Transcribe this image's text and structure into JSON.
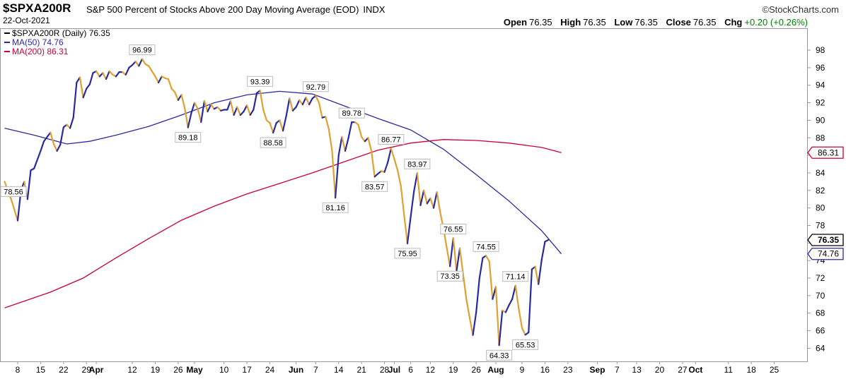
{
  "header": {
    "symbol": "$SPXA200R",
    "title": "S&P 500 Percent of Stocks Above 200 Day Moving Average (EOD)",
    "exchange": "INDX",
    "date": "22-Oct-2021",
    "logo": "©StockCharts.com",
    "ohlc": {
      "open_label": "Open",
      "open": "76.35",
      "high_label": "High",
      "high": "76.35",
      "low_label": "Low",
      "low": "76.35",
      "close_label": "Close",
      "close": "76.35",
      "chg_label": "Chg",
      "chg": "+0.20 (+0.26%)",
      "chg_color": "#008000"
    }
  },
  "legend": [
    {
      "label": "$SPXA200R (Daily) 76.35",
      "color": "#000000"
    },
    {
      "label": "MA(50) 74.76",
      "color": "#2a2aa0"
    },
    {
      "label": "MA(200) 86.31",
      "color": "#cc0033"
    }
  ],
  "chart_data": {
    "type": "line",
    "ylim": [
      62.5,
      100.5
    ],
    "y_ticks": [
      64,
      66,
      68,
      70,
      72,
      74,
      76,
      78,
      80,
      82,
      84,
      86,
      88,
      90,
      92,
      94,
      96,
      98
    ],
    "x_ticks": [
      {
        "label": "8",
        "day": 0
      },
      {
        "label": "15",
        "day": 7
      },
      {
        "label": "22",
        "day": 14
      },
      {
        "label": "29",
        "day": 21
      },
      {
        "label": "Apr",
        "day": 24,
        "bold": true
      },
      {
        "label": "12",
        "day": 35
      },
      {
        "label": "19",
        "day": 42
      },
      {
        "label": "26",
        "day": 49
      },
      {
        "label": "May",
        "day": 54,
        "bold": true
      },
      {
        "label": "10",
        "day": 63
      },
      {
        "label": "17",
        "day": 70
      },
      {
        "label": "24",
        "day": 77
      },
      {
        "label": "Jun",
        "day": 85,
        "bold": true
      },
      {
        "label": "7",
        "day": 91
      },
      {
        "label": "14",
        "day": 98
      },
      {
        "label": "21",
        "day": 105
      },
      {
        "label": "28",
        "day": 112
      },
      {
        "label": "Jul",
        "day": 115,
        "bold": true
      },
      {
        "label": "6",
        "day": 120
      },
      {
        "label": "12",
        "day": 126
      },
      {
        "label": "19",
        "day": 133
      },
      {
        "label": "26",
        "day": 140
      },
      {
        "label": "Aug",
        "day": 146,
        "bold": true
      },
      {
        "label": "9",
        "day": 154
      },
      {
        "label": "16",
        "day": 161
      },
      {
        "label": "23",
        "day": 168
      },
      {
        "label": "Sep",
        "day": 177,
        "bold": true
      },
      {
        "label": "7",
        "day": 183
      },
      {
        "label": "13",
        "day": 189
      },
      {
        "label": "20",
        "day": 196
      },
      {
        "label": "27",
        "day": 203
      },
      {
        "label": "Oct",
        "day": 207,
        "bold": true
      },
      {
        "label": "11",
        "day": 217
      },
      {
        "label": "18",
        "day": 224
      },
      {
        "label": "25",
        "day": 231
      }
    ],
    "series": [
      {
        "name": "$SPXA200R",
        "up_color": "#2a2aa0",
        "down_color": "#e0a030",
        "points": [
          [
            -4,
            83
          ],
          [
            -2,
            81
          ],
          [
            0,
            78.56
          ],
          [
            1,
            82
          ],
          [
            2,
            83
          ],
          [
            3,
            81
          ],
          [
            4,
            84.3
          ],
          [
            5,
            84.5
          ],
          [
            7,
            86.5
          ],
          [
            8,
            87.6
          ],
          [
            10,
            88.6
          ],
          [
            11,
            87.3
          ],
          [
            12,
            86.5
          ],
          [
            13,
            87.2
          ],
          [
            14,
            89.2
          ],
          [
            15,
            89.5
          ],
          [
            16,
            89.1
          ],
          [
            17,
            90.3
          ],
          [
            18,
            94.3
          ],
          [
            19,
            94.9
          ],
          [
            20,
            92.6
          ],
          [
            21,
            93.6
          ],
          [
            22,
            94.1
          ],
          [
            23,
            95.4
          ],
          [
            24,
            95.6
          ],
          [
            25,
            95
          ],
          [
            26,
            95.4
          ],
          [
            27,
            94.7
          ],
          [
            28,
            95.6
          ],
          [
            29,
            95.2
          ],
          [
            30,
            95
          ],
          [
            31,
            95.5
          ],
          [
            32,
            95.5
          ],
          [
            33,
            95.2
          ],
          [
            34,
            96
          ],
          [
            35,
            96.3
          ],
          [
            36,
            96.7
          ],
          [
            37,
            96.2
          ],
          [
            38,
            96.99
          ],
          [
            39,
            96.4
          ],
          [
            40,
            96.2
          ],
          [
            41,
            95.6
          ],
          [
            42,
            95
          ],
          [
            43,
            94.3
          ],
          [
            44,
            95
          ],
          [
            45,
            94.8
          ],
          [
            46,
            94.7
          ],
          [
            47,
            93.6
          ],
          [
            48,
            93.2
          ],
          [
            49,
            92.3
          ],
          [
            50,
            92.9
          ],
          [
            51,
            91.4
          ],
          [
            52,
            89.18
          ],
          [
            53,
            90.8
          ],
          [
            54,
            92
          ],
          [
            55,
            91.3
          ],
          [
            56,
            89.8
          ],
          [
            57,
            92.2
          ],
          [
            58,
            91
          ],
          [
            59,
            91.8
          ],
          [
            60,
            91.3
          ],
          [
            61,
            91.5
          ],
          [
            62,
            91.1
          ],
          [
            63,
            91.2
          ],
          [
            64,
            91.2
          ],
          [
            65,
            92.2
          ],
          [
            66,
            90.6
          ],
          [
            67,
            91.5
          ],
          [
            68,
            90.6
          ],
          [
            69,
            91
          ],
          [
            70,
            91.7
          ],
          [
            71,
            90.6
          ],
          [
            72,
            91.2
          ],
          [
            73,
            93.1
          ],
          [
            74,
            93.39
          ],
          [
            75,
            91.2
          ],
          [
            76,
            90
          ],
          [
            77,
            89.7
          ],
          [
            78,
            88.58
          ],
          [
            79,
            89.7
          ],
          [
            80,
            90
          ],
          [
            81,
            88.8
          ],
          [
            82,
            90.5
          ],
          [
            83,
            92.5
          ],
          [
            84,
            91.1
          ],
          [
            85,
            91.5
          ],
          [
            86,
            92.3
          ],
          [
            87,
            91.8
          ],
          [
            88,
            92.6
          ],
          [
            89,
            91.8
          ],
          [
            90,
            92.5
          ],
          [
            91,
            92.79
          ],
          [
            92,
            92
          ],
          [
            93,
            90.3
          ],
          [
            94,
            90.4
          ],
          [
            95,
            89
          ],
          [
            96,
            86.5
          ],
          [
            97,
            81.16
          ],
          [
            98,
            86
          ],
          [
            99,
            88.1
          ],
          [
            100,
            86.5
          ],
          [
            101,
            88
          ],
          [
            102,
            89.78
          ],
          [
            103,
            89.78
          ],
          [
            104,
            89.5
          ],
          [
            105,
            88.1
          ],
          [
            106,
            87.6
          ],
          [
            107,
            88
          ],
          [
            108,
            86.5
          ],
          [
            109,
            83.57
          ],
          [
            110,
            83.9
          ],
          [
            111,
            84.2
          ],
          [
            112,
            84.1
          ],
          [
            113,
            85.2
          ],
          [
            114,
            86.77
          ],
          [
            115,
            85.6
          ],
          [
            116,
            84.3
          ],
          [
            117,
            82.5
          ],
          [
            118,
            79.2
          ],
          [
            119,
            75.95
          ],
          [
            120,
            79
          ],
          [
            121,
            81.9
          ],
          [
            122,
            83.97
          ],
          [
            123,
            80.3
          ],
          [
            124,
            82
          ],
          [
            125,
            80.5
          ],
          [
            126,
            81.1
          ],
          [
            127,
            80
          ],
          [
            128,
            81.8
          ],
          [
            129,
            79.5
          ],
          [
            130,
            77.7
          ],
          [
            131,
            75.5
          ],
          [
            132,
            73.35
          ],
          [
            133,
            76.55
          ],
          [
            134,
            72.8
          ],
          [
            135,
            75.4
          ],
          [
            136,
            72.5
          ],
          [
            137,
            69.6
          ],
          [
            138,
            67.5
          ],
          [
            139,
            65.5
          ],
          [
            140,
            68.1
          ],
          [
            141,
            72
          ],
          [
            142,
            74.3
          ],
          [
            143,
            74.55
          ],
          [
            144,
            73.9
          ],
          [
            145,
            69.6
          ],
          [
            146,
            71
          ],
          [
            147,
            64.33
          ],
          [
            148,
            68.3
          ],
          [
            149,
            68.1
          ],
          [
            150,
            68.9
          ],
          [
            151,
            69.6
          ],
          [
            152,
            71.14
          ],
          [
            153,
            68.5
          ],
          [
            154,
            66.3
          ],
          [
            155,
            65.53
          ],
          [
            156,
            65.8
          ],
          [
            157,
            73
          ],
          [
            158,
            73.3
          ],
          [
            159,
            71.3
          ],
          [
            160,
            74.1
          ],
          [
            161,
            76.15
          ],
          [
            162,
            76.35
          ]
        ],
        "labels": [
          {
            "i": 0,
            "text": "78.56",
            "pos": "below"
          },
          {
            "i": 38,
            "text": "96.99",
            "pos": "above"
          },
          {
            "i": 52,
            "text": "89.18",
            "pos": "below"
          },
          {
            "i": 74,
            "text": "93.39",
            "pos": "above"
          },
          {
            "i": 78,
            "text": "88.58",
            "pos": "below"
          },
          {
            "i": 91,
            "text": "92.79",
            "pos": "above"
          },
          {
            "i": 97,
            "text": "81.16",
            "pos": "below"
          },
          {
            "i": 102,
            "text": "89.78",
            "pos": "above"
          },
          {
            "i": 109,
            "text": "83.57",
            "pos": "below"
          },
          {
            "i": 114,
            "text": "86.77",
            "pos": "above"
          },
          {
            "i": 119,
            "text": "75.95",
            "pos": "below"
          },
          {
            "i": 122,
            "text": "83.97",
            "pos": "above"
          },
          {
            "i": 132,
            "text": "73.35",
            "pos": "below"
          },
          {
            "i": 133,
            "text": "76.55",
            "pos": "above"
          },
          {
            "i": 143,
            "text": "74.55",
            "pos": "above"
          },
          {
            "i": 147,
            "text": "64.33",
            "pos": "below"
          },
          {
            "i": 152,
            "text": "71.14",
            "pos": "above"
          },
          {
            "i": 155,
            "text": "65.53",
            "pos": "below"
          }
        ]
      },
      {
        "name": "MA(50)",
        "color": "#2a2aa0",
        "points": [
          [
            -4,
            89.1
          ],
          [
            5,
            88.3
          ],
          [
            15,
            87.3
          ],
          [
            22,
            87.6
          ],
          [
            30,
            88.3
          ],
          [
            40,
            89.3
          ],
          [
            50,
            90.6
          ],
          [
            60,
            92
          ],
          [
            70,
            92.9
          ],
          [
            80,
            93.3
          ],
          [
            90,
            93
          ],
          [
            100,
            91.6
          ],
          [
            110,
            90.2
          ],
          [
            120,
            88.9
          ],
          [
            130,
            86.7
          ],
          [
            140,
            83.8
          ],
          [
            150,
            80.8
          ],
          [
            160,
            77.4
          ],
          [
            166,
            74.76
          ]
        ]
      },
      {
        "name": "MA(200)",
        "color": "#cc0033",
        "points": [
          [
            -4,
            68.6
          ],
          [
            10,
            70.4
          ],
          [
            20,
            72
          ],
          [
            30,
            74.3
          ],
          [
            40,
            76.5
          ],
          [
            50,
            78.6
          ],
          [
            60,
            80.2
          ],
          [
            70,
            81.6
          ],
          [
            80,
            82.8
          ],
          [
            90,
            84
          ],
          [
            100,
            85.3
          ],
          [
            110,
            86.6
          ],
          [
            120,
            87.4
          ],
          [
            130,
            87.8
          ],
          [
            140,
            87.7
          ],
          [
            150,
            87.4
          ],
          [
            160,
            86.9
          ],
          [
            166,
            86.31
          ]
        ]
      }
    ],
    "price_tags": [
      {
        "text": "86.31",
        "value": 86.31,
        "color": "#cc0033"
      },
      {
        "text": "76.35",
        "value": 76.35,
        "color": "#000000",
        "bold": true
      },
      {
        "text": "74.76",
        "value": 74.76,
        "color": "#2a2aa0"
      }
    ]
  }
}
